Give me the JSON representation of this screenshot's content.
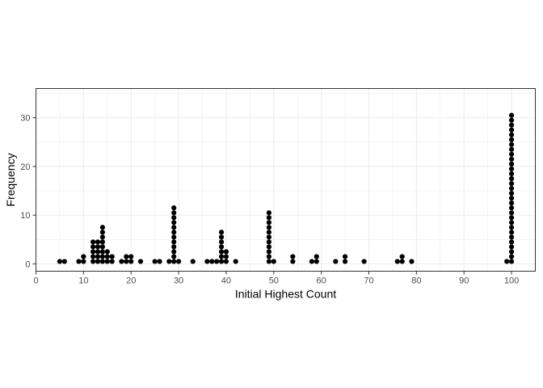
{
  "chart_data": {
    "type": "scatter",
    "subtype": "dotplot",
    "xlabel": "Initial Highest Count",
    "ylabel": "Frequency",
    "xlim": [
      0,
      105
    ],
    "ylim": [
      -1.5,
      36
    ],
    "xticks": [
      0,
      10,
      20,
      30,
      40,
      50,
      60,
      70,
      80,
      90,
      100
    ],
    "yticks": [
      0,
      10,
      20,
      30
    ],
    "grid": true,
    "dot_color": "#000000",
    "grid_color": "#ebebeb",
    "panel_border_color": "#333333",
    "points": [
      {
        "x": 5,
        "count": 1
      },
      {
        "x": 6,
        "count": 1
      },
      {
        "x": 9,
        "count": 1
      },
      {
        "x": 10,
        "count": 2
      },
      {
        "x": 12,
        "count": 5
      },
      {
        "x": 13,
        "count": 5
      },
      {
        "x": 14,
        "count": 8
      },
      {
        "x": 15,
        "count": 3
      },
      {
        "x": 16,
        "count": 2
      },
      {
        "x": 18,
        "count": 1
      },
      {
        "x": 19,
        "count": 2
      },
      {
        "x": 20,
        "count": 2
      },
      {
        "x": 22,
        "count": 1
      },
      {
        "x": 25,
        "count": 1
      },
      {
        "x": 26,
        "count": 1
      },
      {
        "x": 28,
        "count": 1
      },
      {
        "x": 29,
        "count": 12
      },
      {
        "x": 30,
        "count": 1
      },
      {
        "x": 33,
        "count": 1
      },
      {
        "x": 36,
        "count": 1
      },
      {
        "x": 37,
        "count": 1
      },
      {
        "x": 38,
        "count": 1
      },
      {
        "x": 39,
        "count": 7
      },
      {
        "x": 40,
        "count": 3
      },
      {
        "x": 42,
        "count": 1
      },
      {
        "x": 49,
        "count": 11
      },
      {
        "x": 50,
        "count": 1
      },
      {
        "x": 54,
        "count": 2
      },
      {
        "x": 58,
        "count": 1
      },
      {
        "x": 59,
        "count": 2
      },
      {
        "x": 63,
        "count": 1
      },
      {
        "x": 65,
        "count": 2
      },
      {
        "x": 69,
        "count": 1
      },
      {
        "x": 76,
        "count": 1
      },
      {
        "x": 77,
        "count": 2
      },
      {
        "x": 79,
        "count": 1
      },
      {
        "x": 99,
        "count": 1
      },
      {
        "x": 100,
        "count": 31
      }
    ]
  }
}
